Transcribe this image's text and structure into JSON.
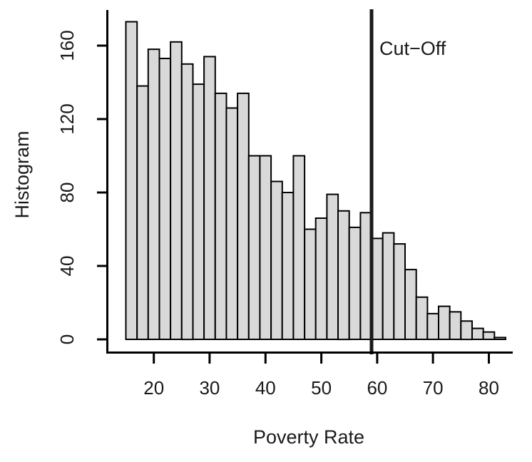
{
  "figure": {
    "background": "#ffffff",
    "kind": "histogram-plot"
  },
  "chart_data": {
    "type": "bar",
    "subtype": "histogram",
    "title": "",
    "xlabel": "Poverty Rate",
    "ylabel": "Histogram",
    "bins": {
      "start": 15,
      "width": 2,
      "end": 83
    },
    "counts": [
      173,
      138,
      158,
      153,
      162,
      150,
      139,
      154,
      134,
      126,
      134,
      100,
      100,
      86,
      80,
      100,
      60,
      66,
      79,
      70,
      61,
      69,
      55,
      58,
      52,
      38,
      23,
      14,
      18,
      15,
      10,
      6,
      4,
      1
    ],
    "x_ticks": [
      20,
      30,
      40,
      50,
      60,
      70,
      80
    ],
    "y_ticks": [
      0,
      40,
      80,
      120,
      160
    ],
    "xlim": [
      13,
      85
    ],
    "ylim": [
      0,
      179
    ],
    "grid": false,
    "legend": null,
    "cutoff": {
      "value": 59,
      "label": "Cut−Off"
    },
    "colors": {
      "bar_fill": "#d9d9d9",
      "bar_stroke": "#000000",
      "axis": "#000000",
      "cutoff_line": "#1a1a1a",
      "text": "#1a1a1a"
    }
  }
}
